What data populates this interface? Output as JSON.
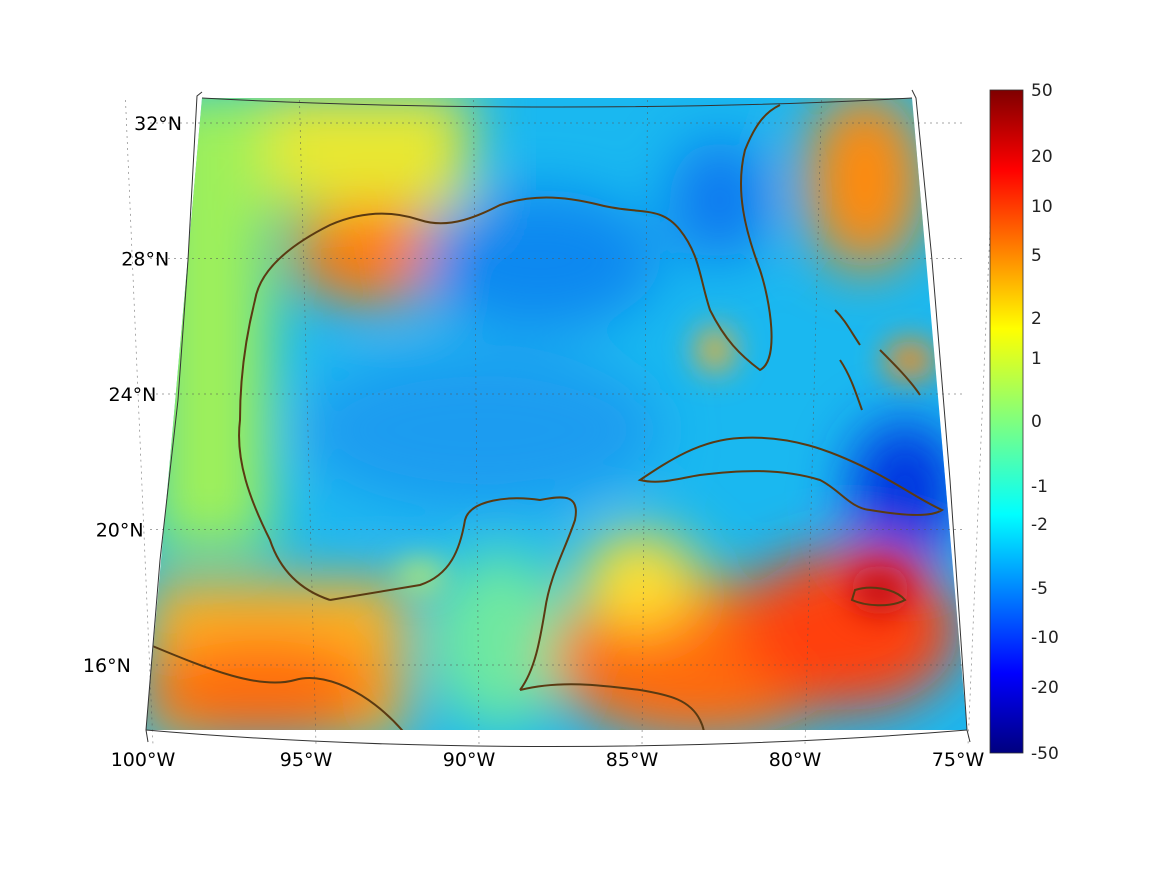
{
  "map": {
    "region": "Gulf of Mexico and Caribbean",
    "lon_range": [
      -100,
      -75
    ],
    "lat_range": [
      14,
      33
    ],
    "lon_ticks": [
      {
        "value": -100,
        "label": "100°W"
      },
      {
        "value": -95,
        "label": "95°W"
      },
      {
        "value": -90,
        "label": "90°W"
      },
      {
        "value": -85,
        "label": "85°W"
      },
      {
        "value": -80,
        "label": "80°W"
      },
      {
        "value": -75,
        "label": "75°W"
      }
    ],
    "lat_ticks": [
      {
        "value": 16,
        "label": "16°N"
      },
      {
        "value": 20,
        "label": "20°N"
      },
      {
        "value": 24,
        "label": "24°N"
      },
      {
        "value": 28,
        "label": "28°N"
      },
      {
        "value": 32,
        "label": "32°N"
      }
    ],
    "coastline_color": "#5a3a12",
    "grid": true
  },
  "colorbar": {
    "colormap": "jet",
    "ticks": [
      "50",
      "20",
      "10",
      "5",
      "2",
      "1",
      "0",
      "-1",
      "-2",
      "-5",
      "-10",
      "-20",
      "-50"
    ],
    "colors": [
      "#7f0000",
      "#ff0000",
      "#ff7f00",
      "#ffff00",
      "#7fff7f",
      "#00ffff",
      "#007fff",
      "#0000ff",
      "#00007f"
    ]
  }
}
